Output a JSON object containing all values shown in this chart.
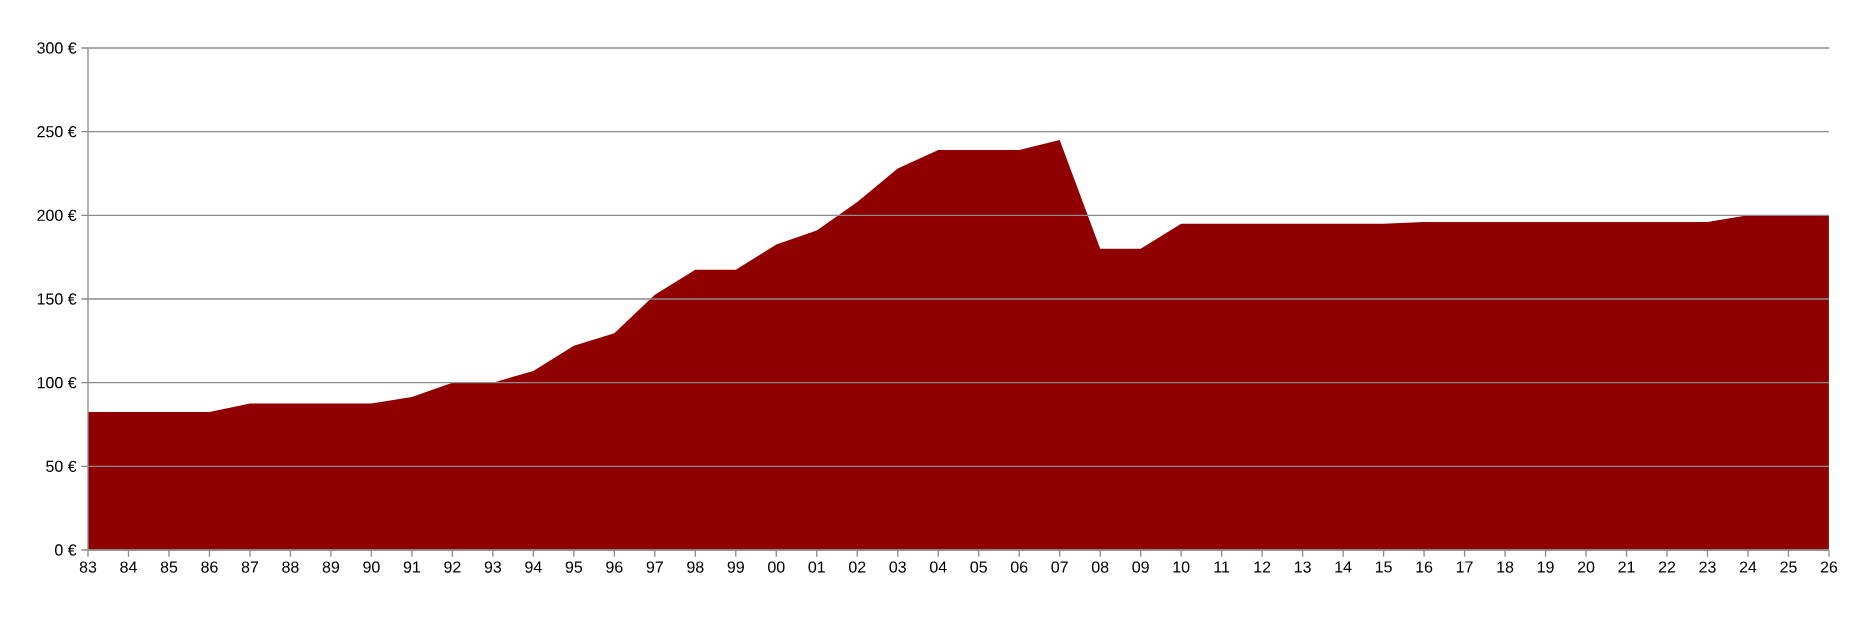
{
  "chart_data": {
    "type": "area",
    "categories": [
      "83",
      "84",
      "85",
      "86",
      "87",
      "88",
      "89",
      "90",
      "91",
      "92",
      "93",
      "94",
      "95",
      "96",
      "97",
      "98",
      "99",
      "00",
      "01",
      "02",
      "03",
      "04",
      "05",
      "06",
      "07",
      "08",
      "09",
      "10",
      "11",
      "12",
      "13",
      "14",
      "15",
      "16",
      "17",
      "18",
      "19",
      "20",
      "21",
      "22",
      "23",
      "24",
      "25",
      "26"
    ],
    "values": [
      82.5,
      82.5,
      82.5,
      82.5,
      87.5,
      87.5,
      87.5,
      87.5,
      91.5,
      100,
      100,
      107,
      122,
      129.5,
      152.5,
      167.5,
      167.5,
      182.5,
      191,
      208,
      228,
      239,
      239,
      239,
      245,
      180,
      180,
      195,
      195,
      195,
      195,
      195,
      195,
      196,
      196,
      196,
      196,
      196,
      196,
      196,
      196,
      200,
      200,
      200
    ],
    "color": "#900000",
    "ylim": [
      0,
      300
    ],
    "yticks": [
      {
        "value": 0,
        "label": "0 €"
      },
      {
        "value": 50,
        "label": "50 €"
      },
      {
        "value": 100,
        "label": "100 €"
      },
      {
        "value": 150,
        "label": "150 €"
      },
      {
        "value": 200,
        "label": "200 €"
      },
      {
        "value": 250,
        "label": "250 €"
      },
      {
        "value": 300,
        "label": "300 €"
      }
    ],
    "grid": "y"
  }
}
